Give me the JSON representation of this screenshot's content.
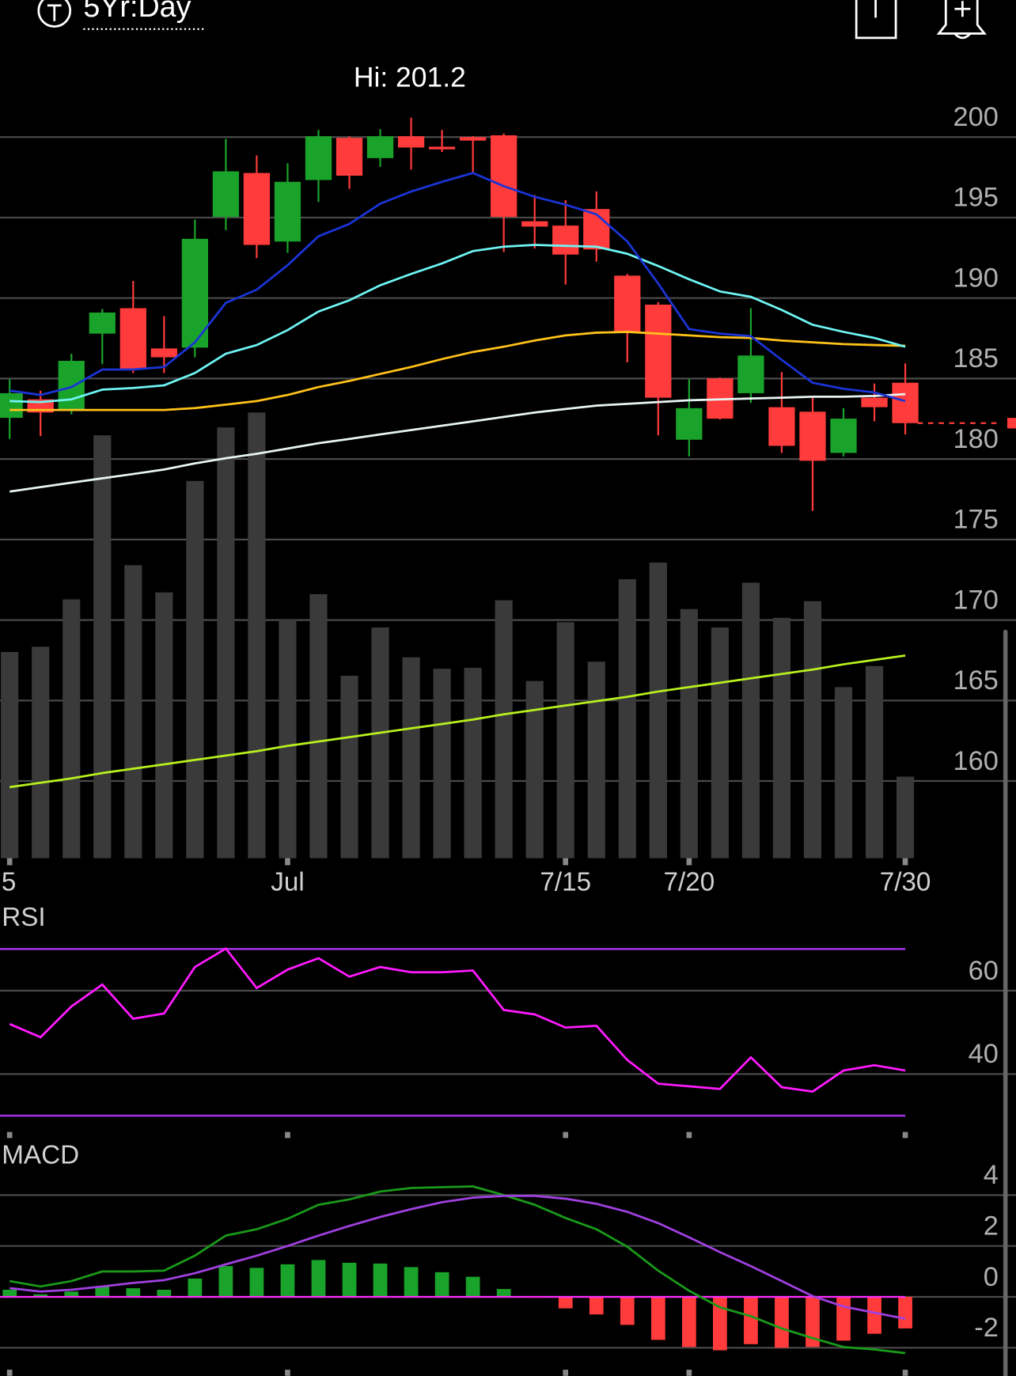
{
  "header": {
    "range_label": "5Yr:Day"
  },
  "chart_data": [
    {
      "type": "candlestick",
      "annotation": "Hi: 201.2",
      "categories": [
        "5",
        null,
        null,
        null,
        null,
        null,
        null,
        null,
        null,
        "Jul",
        null,
        null,
        null,
        null,
        null,
        null,
        null,
        null,
        "7/15",
        null,
        null,
        null,
        "7/20",
        null,
        null,
        null,
        null,
        null,
        null,
        "7/30"
      ],
      "open": [
        182.56,
        183.71,
        183.0,
        187.79,
        189.37,
        186.87,
        186.92,
        195.04,
        197.77,
        193.51,
        197.33,
        199.95,
        198.69,
        200.05,
        199.4,
        200.0,
        200.11,
        194.77,
        194.5,
        195.53,
        191.39,
        189.59,
        181.2,
        185.01,
        184.09,
        183.22,
        182.94,
        180.38,
        183.81,
        184.74
      ],
      "high": [
        184.96,
        184.25,
        186.54,
        189.32,
        191.06,
        188.88,
        194.88,
        199.89,
        198.86,
        198.37,
        200.44,
        200.05,
        200.49,
        201.2,
        200.44,
        200.05,
        200.22,
        196.4,
        196.08,
        196.62,
        191.5,
        189.75,
        184.96,
        185.07,
        189.37,
        185.4,
        183.81,
        183.16,
        184.69,
        185.94
      ],
      "low": [
        181.25,
        181.42,
        182.78,
        185.89,
        185.34,
        185.34,
        186.32,
        194.22,
        192.48,
        192.81,
        195.97,
        196.78,
        198.15,
        197.98,
        199.07,
        197.82,
        192.86,
        193.08,
        190.84,
        192.26,
        186.0,
        181.47,
        180.16,
        182.45,
        183.49,
        180.38,
        176.78,
        180.16,
        182.34,
        181.53
      ],
      "close": [
        184.09,
        182.89,
        186.1,
        189.1,
        185.61,
        186.32,
        193.68,
        197.87,
        193.3,
        197.22,
        200.05,
        197.6,
        200.05,
        199.35,
        199.24,
        199.78,
        195.04,
        194.44,
        192.7,
        193.02,
        187.9,
        183.81,
        183.16,
        182.51,
        186.43,
        180.82,
        179.89,
        182.51,
        183.22,
        182.23
      ],
      "up_color": "#1aa32a",
      "down_color": "#ff3b3b",
      "lines": [
        {
          "color": "#e8f4f4",
          "values": [
            177.98,
            178.26,
            178.53,
            178.8,
            179.07,
            179.35,
            179.73,
            180.05,
            180.33,
            180.65,
            180.98,
            181.25,
            181.53,
            181.8,
            182.07,
            182.34,
            182.62,
            182.89,
            183.11,
            183.32,
            183.43,
            183.54,
            183.65,
            183.71,
            183.76,
            183.81,
            183.87,
            183.87,
            183.92,
            184.03
          ]
        },
        {
          "color": "#ffc21a",
          "values": [
            183.05,
            183.05,
            183.05,
            183.05,
            183.05,
            183.05,
            183.16,
            183.38,
            183.6,
            183.98,
            184.47,
            184.85,
            185.29,
            185.72,
            186.21,
            186.65,
            186.98,
            187.36,
            187.68,
            187.85,
            187.9,
            187.79,
            187.68,
            187.57,
            187.52,
            187.36,
            187.25,
            187.14,
            187.08,
            187.03
          ]
        },
        {
          "color": "#6ff4f4",
          "values": [
            183.6,
            183.54,
            183.71,
            184.31,
            184.41,
            184.58,
            185.34,
            186.54,
            187.08,
            188.01,
            189.16,
            189.86,
            190.79,
            191.5,
            192.15,
            192.92,
            193.19,
            193.3,
            193.24,
            193.19,
            192.75,
            191.99,
            191.17,
            190.41,
            190.08,
            189.26,
            188.34,
            187.9,
            187.52,
            186.98
          ]
        },
        {
          "color": "#1b34d6",
          "values": [
            184.25,
            183.98,
            184.47,
            185.56,
            185.56,
            185.72,
            187.25,
            189.7,
            190.52,
            192.04,
            193.84,
            194.6,
            195.86,
            196.62,
            197.22,
            197.77,
            196.95,
            196.29,
            195.8,
            195.2,
            193.51,
            190.9,
            188.07,
            187.79,
            187.63,
            186.16,
            184.74,
            184.36,
            184.14,
            183.6
          ]
        }
      ],
      "ylim": [
        155,
        203
      ],
      "yticks": [
        160,
        165,
        170,
        175,
        180,
        185,
        190,
        195,
        200
      ],
      "grid": true
    },
    {
      "type": "bar",
      "color": "#3a3a3a",
      "values": [
        235,
        241,
        295,
        482,
        334,
        303,
        430,
        491,
        508,
        272,
        301,
        208,
        263,
        229,
        216,
        217,
        294,
        202,
        269,
        224,
        318,
        337,
        284,
        263,
        314,
        274,
        293,
        195,
        219,
        93
      ],
      "line": {
        "color": "#b8f01e",
        "values": [
          81,
          86,
          91,
          97,
          102,
          107,
          112,
          117,
          122,
          128,
          133,
          138,
          143,
          148,
          153,
          158,
          164,
          169,
          174,
          179,
          184,
          190,
          195,
          200,
          205,
          210,
          215,
          221,
          226,
          231
        ]
      },
      "ylim": [
        0,
        600
      ]
    },
    {
      "type": "line",
      "title": "RSI",
      "color": "#ff1aff",
      "values": [
        52.0,
        48.84,
        56.21,
        61.47,
        53.26,
        54.53,
        65.68,
        70.11,
        60.63,
        65.05,
        67.79,
        63.37,
        65.68,
        64.42,
        64.42,
        64.84,
        55.37,
        54.32,
        51.16,
        51.58,
        43.37,
        37.68,
        37.05,
        36.42,
        44.0,
        36.84,
        35.79,
        40.84,
        42.11,
        40.84
      ],
      "bands": [
        30,
        70
      ],
      "band_color": "#9b30d9",
      "ylim": [
        26,
        74.6
      ],
      "yticks": [
        40,
        60
      ],
      "grid": true
    },
    {
      "type": "macd",
      "title": "MACD",
      "series": [
        {
          "color": "#1a9a1a",
          "values": [
            0.62,
            0.41,
            0.62,
            1.0,
            1.0,
            1.03,
            1.62,
            2.41,
            2.66,
            3.07,
            3.62,
            3.83,
            4.14,
            4.28,
            4.31,
            4.34,
            4.0,
            3.62,
            3.1,
            2.66,
            1.97,
            1.03,
            0.24,
            -0.41,
            -0.76,
            -1.24,
            -1.62,
            -1.97,
            -2.07,
            -2.21
          ]
        },
        {
          "color": "#a040e0",
          "values": [
            0.34,
            0.21,
            0.28,
            0.41,
            0.55,
            0.66,
            0.93,
            1.28,
            1.62,
            2.0,
            2.41,
            2.79,
            3.14,
            3.45,
            3.72,
            3.9,
            3.97,
            3.97,
            3.86,
            3.66,
            3.34,
            2.9,
            2.34,
            1.76,
            1.21,
            0.62,
            0.03,
            -0.38,
            -0.62,
            -0.86
          ]
        }
      ],
      "histogram": {
        "up_color": "#1aa32a",
        "down_color": "#ff3b3b",
        "values": [
          0.28,
          0.1,
          0.21,
          0.41,
          0.34,
          0.28,
          0.72,
          1.21,
          1.14,
          1.28,
          1.45,
          1.34,
          1.31,
          1.17,
          0.97,
          0.79,
          0.31,
          -0.03,
          -0.45,
          -0.69,
          -1.1,
          -1.69,
          -1.97,
          -2.1,
          -1.86,
          -2.0,
          -1.97,
          -1.72,
          -1.45,
          -1.24
        ]
      },
      "zero_color": "#ff2aff",
      "ylim": [
        -3.1,
        4.9
      ],
      "yticks": [
        -2,
        0,
        2,
        4
      ],
      "grid": true
    }
  ]
}
